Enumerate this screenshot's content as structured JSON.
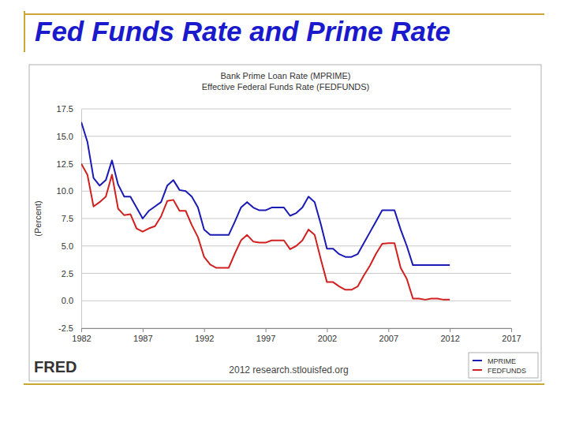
{
  "chart_data": {
    "type": "line",
    "title": "Fed Funds Rate and Prime Rate",
    "subtitle": [
      "Bank Prime Loan Rate (MPRIME)",
      "Effective Federal Funds Rate (FEDFUNDS)"
    ],
    "y_label": "(Percent)",
    "annotations": [
      "FRED",
      "2012 research.stlouisfed.org"
    ],
    "x": [
      1982,
      1982.5,
      1983,
      1983.5,
      1984,
      1984.5,
      1985,
      1985.5,
      1986,
      1986.5,
      1987,
      1987.5,
      1988,
      1988.5,
      1989,
      1989.5,
      1990,
      1990.5,
      1991,
      1991.5,
      1992,
      1992.5,
      1993,
      1993.5,
      1994,
      1994.5,
      1995,
      1995.5,
      1996,
      1996.5,
      1997,
      1997.5,
      1998,
      1998.5,
      1999,
      1999.5,
      2000,
      2000.5,
      2001,
      2001.5,
      2002,
      2002.5,
      2003,
      2003.5,
      2004,
      2004.5,
      2005,
      2005.5,
      2006,
      2006.5,
      2007,
      2007.5,
      2008,
      2008.5,
      2009,
      2009.5,
      2010,
      2010.5,
      2011,
      2011.5,
      2012
    ],
    "series": [
      {
        "name": "MPRIME",
        "color": "#1a1ab4",
        "values": [
          16.3,
          14.5,
          11.2,
          10.5,
          11.0,
          12.8,
          10.6,
          9.5,
          9.5,
          8.5,
          7.5,
          8.2,
          8.6,
          9.0,
          10.5,
          11.0,
          10.1,
          10.0,
          9.5,
          8.5,
          6.5,
          6.0,
          6.0,
          6.0,
          6.0,
          7.2,
          8.5,
          9.0,
          8.5,
          8.25,
          8.25,
          8.5,
          8.5,
          8.5,
          7.75,
          8.0,
          8.5,
          9.5,
          9.0,
          7.0,
          4.75,
          4.75,
          4.25,
          4.0,
          4.0,
          4.25,
          5.25,
          6.25,
          7.25,
          8.25,
          8.25,
          8.25,
          6.5,
          5.0,
          3.25,
          3.25,
          3.25,
          3.25,
          3.25,
          3.25,
          3.25
        ]
      },
      {
        "name": "FEDFUNDS",
        "color": "#d02020",
        "values": [
          12.5,
          11.5,
          8.6,
          9.0,
          9.5,
          11.5,
          8.4,
          7.8,
          7.9,
          6.6,
          6.3,
          6.6,
          6.8,
          7.7,
          9.1,
          9.2,
          8.2,
          8.2,
          6.9,
          5.8,
          4.0,
          3.3,
          3.0,
          3.0,
          3.0,
          4.3,
          5.5,
          6.0,
          5.4,
          5.3,
          5.3,
          5.5,
          5.5,
          5.5,
          4.7,
          5.0,
          5.5,
          6.5,
          6.0,
          3.8,
          1.7,
          1.7,
          1.3,
          1.0,
          1.0,
          1.3,
          2.3,
          3.2,
          4.3,
          5.2,
          5.25,
          5.25,
          3.0,
          2.0,
          0.2,
          0.2,
          0.1,
          0.2,
          0.2,
          0.1,
          0.1
        ]
      }
    ],
    "xlim": [
      1982,
      2017
    ],
    "xticks": [
      1982,
      1987,
      1992,
      1997,
      2002,
      2007,
      2012,
      2017
    ],
    "ylim": [
      -2.5,
      17.5
    ],
    "yticks": [
      -2.5,
      {
        "value": 0,
        "label": "0.0"
      },
      2.5,
      {
        "value": 5,
        "label": "5.0"
      },
      7.5,
      {
        "value": 10,
        "label": "10.0"
      },
      12.5,
      {
        "value": 15,
        "label": "15.0"
      },
      17.5
    ],
    "grid": true,
    "legend": "bottom-right"
  }
}
